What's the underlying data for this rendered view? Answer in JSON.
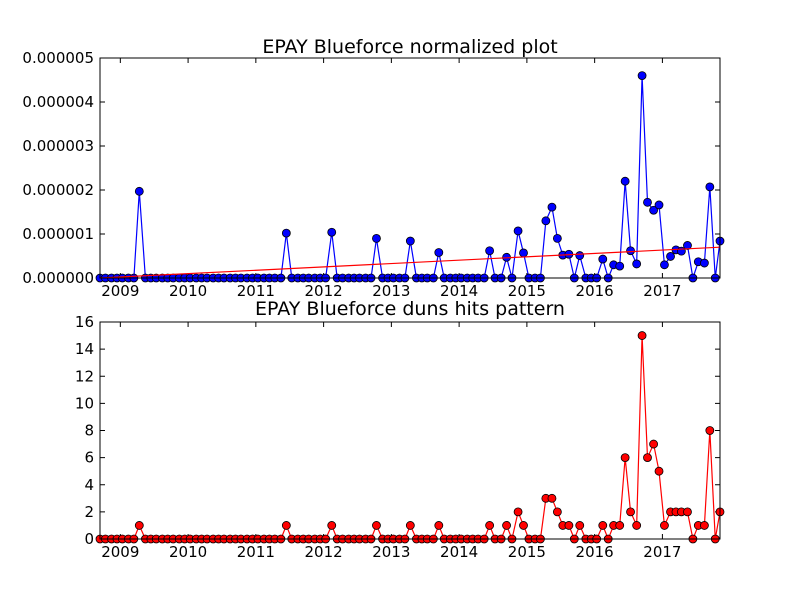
{
  "colors": {
    "series_top": "#0000ff",
    "trend": "#ff0000",
    "series_bottom": "#ff0000",
    "marker_edge": "#000000"
  },
  "chart_data": [
    {
      "type": "line",
      "title": "EPAY Blueforce normalized plot",
      "xlabel": "",
      "ylabel": "",
      "x_ticks": [
        "2009",
        "2010",
        "2011",
        "2012",
        "2013",
        "2014",
        "2015",
        "2016",
        "2017"
      ],
      "y_ticks": [
        "0.000000",
        "0.000001",
        "0.000002",
        "0.000003",
        "0.000004",
        "0.000005"
      ],
      "xlim": [
        2008.7,
        2017.85
      ],
      "ylim": [
        0,
        5e-06
      ],
      "grid": false,
      "series": [
        {
          "marker": "circle",
          "color": "#0000ff",
          "points": [
            [
              2008.7,
              0
            ],
            [
              2008.78,
              0
            ],
            [
              2008.87,
              0
            ],
            [
              2008.95,
              0
            ],
            [
              2009.03,
              0
            ],
            [
              2009.12,
              0
            ],
            [
              2009.2,
              0
            ],
            [
              2009.28,
              1.97e-06
            ],
            [
              2009.37,
              0
            ],
            [
              2009.45,
              0
            ],
            [
              2009.53,
              0
            ],
            [
              2009.62,
              0
            ],
            [
              2009.7,
              0
            ],
            [
              2009.78,
              0
            ],
            [
              2009.87,
              0
            ],
            [
              2009.95,
              0
            ],
            [
              2010.03,
              0
            ],
            [
              2010.12,
              0
            ],
            [
              2010.2,
              0
            ],
            [
              2010.28,
              0
            ],
            [
              2010.37,
              0
            ],
            [
              2010.45,
              0
            ],
            [
              2010.53,
              0
            ],
            [
              2010.62,
              0
            ],
            [
              2010.7,
              0
            ],
            [
              2010.78,
              0
            ],
            [
              2010.87,
              0
            ],
            [
              2010.95,
              0
            ],
            [
              2011.03,
              0
            ],
            [
              2011.12,
              0
            ],
            [
              2011.2,
              0
            ],
            [
              2011.28,
              0
            ],
            [
              2011.37,
              0
            ],
            [
              2011.45,
              1.02e-06
            ],
            [
              2011.53,
              0
            ],
            [
              2011.62,
              0
            ],
            [
              2011.7,
              0
            ],
            [
              2011.78,
              0
            ],
            [
              2011.87,
              0
            ],
            [
              2011.95,
              0
            ],
            [
              2012.03,
              0
            ],
            [
              2012.12,
              1.04e-06
            ],
            [
              2012.2,
              0
            ],
            [
              2012.28,
              0
            ],
            [
              2012.37,
              0
            ],
            [
              2012.45,
              0
            ],
            [
              2012.53,
              0
            ],
            [
              2012.62,
              0
            ],
            [
              2012.7,
              0
            ],
            [
              2012.78,
              9e-07
            ],
            [
              2012.87,
              0
            ],
            [
              2012.95,
              0
            ],
            [
              2013.03,
              0
            ],
            [
              2013.12,
              0
            ],
            [
              2013.2,
              0
            ],
            [
              2013.28,
              8.4e-07
            ],
            [
              2013.37,
              0
            ],
            [
              2013.45,
              0
            ],
            [
              2013.53,
              0
            ],
            [
              2013.62,
              0
            ],
            [
              2013.7,
              5.8e-07
            ],
            [
              2013.78,
              0
            ],
            [
              2013.87,
              0
            ],
            [
              2013.95,
              0
            ],
            [
              2014.03,
              0
            ],
            [
              2014.12,
              0
            ],
            [
              2014.2,
              0
            ],
            [
              2014.28,
              0
            ],
            [
              2014.37,
              0
            ],
            [
              2014.45,
              6.2e-07
            ],
            [
              2014.53,
              0
            ],
            [
              2014.62,
              0
            ],
            [
              2014.7,
              4.7e-07
            ],
            [
              2014.78,
              0
            ],
            [
              2014.87,
              1.07e-06
            ],
            [
              2014.95,
              5.7e-07
            ],
            [
              2015.03,
              0
            ],
            [
              2015.12,
              0
            ],
            [
              2015.2,
              0
            ],
            [
              2015.28,
              1.3e-06
            ],
            [
              2015.37,
              1.61e-06
            ],
            [
              2015.45,
              9e-07
            ],
            [
              2015.53,
              5.2e-07
            ],
            [
              2015.62,
              5.4e-07
            ],
            [
              2015.7,
              0
            ],
            [
              2015.78,
              5.1e-07
            ],
            [
              2015.87,
              0
            ],
            [
              2015.95,
              0
            ],
            [
              2016.03,
              0
            ],
            [
              2016.12,
              4.3e-07
            ],
            [
              2016.2,
              0
            ],
            [
              2016.28,
              3e-07
            ],
            [
              2016.37,
              2.7e-07
            ],
            [
              2016.45,
              2.2e-06
            ],
            [
              2016.53,
              6.2e-07
            ],
            [
              2016.62,
              3.2e-07
            ],
            [
              2016.7,
              4.6e-06
            ],
            [
              2016.78,
              1.72e-06
            ],
            [
              2016.87,
              1.54e-06
            ],
            [
              2016.95,
              1.66e-06
            ],
            [
              2017.03,
              3e-07
            ],
            [
              2017.12,
              4.9e-07
            ],
            [
              2017.2,
              6.4e-07
            ],
            [
              2017.28,
              6.1e-07
            ],
            [
              2017.37,
              7.4e-07
            ],
            [
              2017.45,
              0
            ],
            [
              2017.53,
              3.7e-07
            ],
            [
              2017.62,
              3.4e-07
            ],
            [
              2017.7,
              2.07e-06
            ],
            [
              2017.78,
              0
            ],
            [
              2017.85,
              8.4e-07
            ]
          ]
        },
        {
          "kind": "trend",
          "color": "#ff0000",
          "points": [
            [
              2008.7,
              0
            ],
            [
              2017.85,
              7e-07
            ]
          ]
        }
      ]
    },
    {
      "type": "line",
      "title": "EPAY Blueforce duns hits pattern",
      "xlabel": "",
      "ylabel": "",
      "x_ticks": [
        "2009",
        "2010",
        "2011",
        "2012",
        "2013",
        "2014",
        "2015",
        "2016",
        "2017"
      ],
      "y_ticks": [
        "0",
        "2",
        "4",
        "6",
        "8",
        "10",
        "12",
        "14",
        "16"
      ],
      "xlim": [
        2008.7,
        2017.85
      ],
      "ylim": [
        0,
        16
      ],
      "grid": false,
      "series": [
        {
          "marker": "circle",
          "color": "#ff0000",
          "points": [
            [
              2008.7,
              0
            ],
            [
              2008.78,
              0
            ],
            [
              2008.87,
              0
            ],
            [
              2008.95,
              0
            ],
            [
              2009.03,
              0
            ],
            [
              2009.12,
              0
            ],
            [
              2009.2,
              0
            ],
            [
              2009.28,
              1
            ],
            [
              2009.37,
              0
            ],
            [
              2009.45,
              0
            ],
            [
              2009.53,
              0
            ],
            [
              2009.62,
              0
            ],
            [
              2009.7,
              0
            ],
            [
              2009.78,
              0
            ],
            [
              2009.87,
              0
            ],
            [
              2009.95,
              0
            ],
            [
              2010.03,
              0
            ],
            [
              2010.12,
              0
            ],
            [
              2010.2,
              0
            ],
            [
              2010.28,
              0
            ],
            [
              2010.37,
              0
            ],
            [
              2010.45,
              0
            ],
            [
              2010.53,
              0
            ],
            [
              2010.62,
              0
            ],
            [
              2010.7,
              0
            ],
            [
              2010.78,
              0
            ],
            [
              2010.87,
              0
            ],
            [
              2010.95,
              0
            ],
            [
              2011.03,
              0
            ],
            [
              2011.12,
              0
            ],
            [
              2011.2,
              0
            ],
            [
              2011.28,
              0
            ],
            [
              2011.37,
              0
            ],
            [
              2011.45,
              1
            ],
            [
              2011.53,
              0
            ],
            [
              2011.62,
              0
            ],
            [
              2011.7,
              0
            ],
            [
              2011.78,
              0
            ],
            [
              2011.87,
              0
            ],
            [
              2011.95,
              0
            ],
            [
              2012.03,
              0
            ],
            [
              2012.12,
              1
            ],
            [
              2012.2,
              0
            ],
            [
              2012.28,
              0
            ],
            [
              2012.37,
              0
            ],
            [
              2012.45,
              0
            ],
            [
              2012.53,
              0
            ],
            [
              2012.62,
              0
            ],
            [
              2012.7,
              0
            ],
            [
              2012.78,
              1
            ],
            [
              2012.87,
              0
            ],
            [
              2012.95,
              0
            ],
            [
              2013.03,
              0
            ],
            [
              2013.12,
              0
            ],
            [
              2013.2,
              0
            ],
            [
              2013.28,
              1
            ],
            [
              2013.37,
              0
            ],
            [
              2013.45,
              0
            ],
            [
              2013.53,
              0
            ],
            [
              2013.62,
              0
            ],
            [
              2013.7,
              1
            ],
            [
              2013.78,
              0
            ],
            [
              2013.87,
              0
            ],
            [
              2013.95,
              0
            ],
            [
              2014.03,
              0
            ],
            [
              2014.12,
              0
            ],
            [
              2014.2,
              0
            ],
            [
              2014.28,
              0
            ],
            [
              2014.37,
              0
            ],
            [
              2014.45,
              1
            ],
            [
              2014.53,
              0
            ],
            [
              2014.62,
              0
            ],
            [
              2014.7,
              1
            ],
            [
              2014.78,
              0
            ],
            [
              2014.87,
              2
            ],
            [
              2014.95,
              1
            ],
            [
              2015.03,
              0
            ],
            [
              2015.12,
              0
            ],
            [
              2015.2,
              0
            ],
            [
              2015.28,
              3
            ],
            [
              2015.37,
              3
            ],
            [
              2015.45,
              2
            ],
            [
              2015.53,
              1
            ],
            [
              2015.62,
              1
            ],
            [
              2015.7,
              0
            ],
            [
              2015.78,
              1
            ],
            [
              2015.87,
              0
            ],
            [
              2015.95,
              0
            ],
            [
              2016.03,
              0
            ],
            [
              2016.12,
              1
            ],
            [
              2016.2,
              0
            ],
            [
              2016.28,
              1
            ],
            [
              2016.37,
              1
            ],
            [
              2016.45,
              6
            ],
            [
              2016.53,
              2
            ],
            [
              2016.62,
              1
            ],
            [
              2016.7,
              15
            ],
            [
              2016.78,
              6
            ],
            [
              2016.87,
              7
            ],
            [
              2016.95,
              5
            ],
            [
              2017.03,
              1
            ],
            [
              2017.12,
              2
            ],
            [
              2017.2,
              2
            ],
            [
              2017.28,
              2
            ],
            [
              2017.37,
              2
            ],
            [
              2017.45,
              0
            ],
            [
              2017.53,
              1
            ],
            [
              2017.62,
              1
            ],
            [
              2017.7,
              8
            ],
            [
              2017.78,
              0
            ],
            [
              2017.85,
              2
            ]
          ]
        }
      ]
    }
  ]
}
